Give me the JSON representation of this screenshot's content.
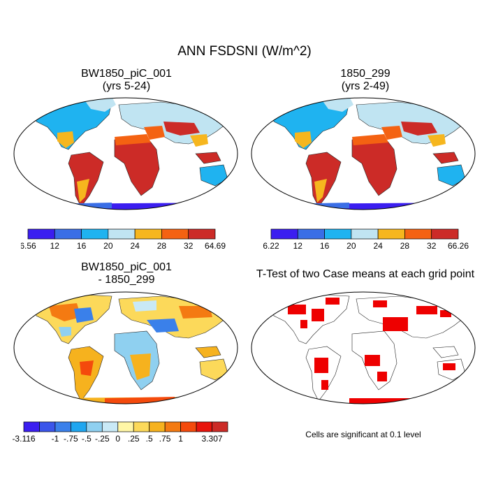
{
  "title": "ANN FSDSNI (W/m^2)",
  "panels": [
    {
      "title_line1": "BW1850_piC_001",
      "title_line2": "(yrs 5-24)"
    },
    {
      "title_line1": "1850_299",
      "title_line2": "(yrs 2-49)"
    },
    {
      "title_line1": "BW1850_piC_001",
      "title_line2": "- 1850_299"
    },
    {
      "title_line1": "T-Test of two Case means at each grid point",
      "title_line2": ""
    }
  ],
  "colorbars": [
    {
      "labels": [
        "6.56",
        "12",
        "16",
        "20",
        "24",
        "28",
        "32",
        "64.69"
      ],
      "colors": [
        "#3b1ef0",
        "#3a6ee6",
        "#1fb3f0",
        "#c0e4f2",
        "#f6b61e",
        "#f46212",
        "#cc2b27"
      ]
    },
    {
      "labels": [
        "6.22",
        "12",
        "16",
        "20",
        "24",
        "28",
        "32",
        "66.26"
      ],
      "colors": [
        "#3b1ef0",
        "#3a6ee6",
        "#1fb3f0",
        "#c0e4f2",
        "#f6b61e",
        "#f46212",
        "#cc2b27"
      ]
    },
    {
      "labels": [
        "-3.116",
        "",
        "-1",
        "-.75",
        "-.5",
        "-.25",
        "0",
        ".25",
        ".5",
        ".75",
        "1",
        "",
        "3.307"
      ],
      "colors": [
        "#3b1ef0",
        "#3a55ea",
        "#3a80ea",
        "#1fa6f0",
        "#8fd0f0",
        "#c9e9f6",
        "#fff6a6",
        "#fcd95a",
        "#f6b21e",
        "#f47a12",
        "#f44a0c",
        "#e8140c",
        "#cc2b27"
      ]
    }
  ],
  "significance_note": "Cells are significant at 0.1 level",
  "colors": {
    "background": "#ffffff",
    "significant": "#ee0000"
  }
}
